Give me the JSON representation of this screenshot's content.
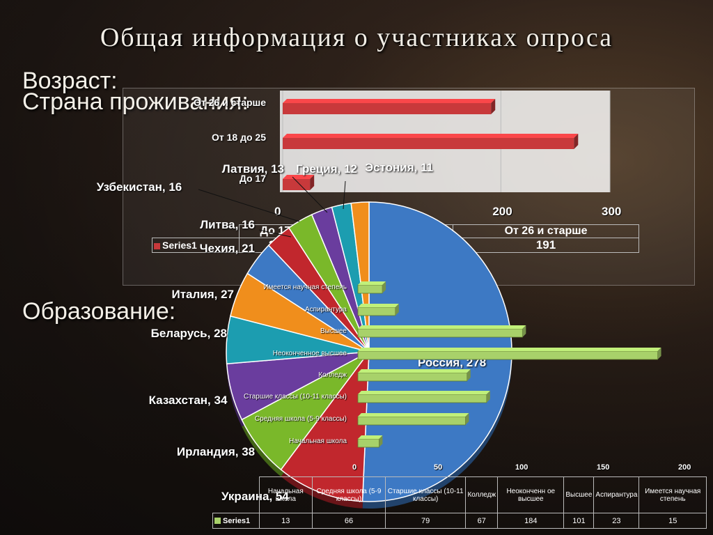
{
  "title": "Общая информация о участниках опроса",
  "sections": {
    "age": "Возраст:",
    "country": "Страна проживания:",
    "education": "Образование:"
  },
  "chart_data": [
    {
      "id": "age",
      "type": "bar",
      "orientation": "horizontal",
      "categories": [
        "До 17",
        "От 18 до 25",
        "От 26 и старше"
      ],
      "series": [
        {
          "name": "Series1",
          "values": [
            25,
            267,
            191
          ]
        }
      ],
      "xlim": [
        0,
        300
      ],
      "x_ticks": [
        0,
        200,
        300
      ],
      "table_headers": [
        "До 17",
        "От 18 до 25",
        "От 26 и старше"
      ],
      "table_values": [
        "25",
        "267",
        "191"
      ],
      "legend": "Series1",
      "color": "#c8393b"
    },
    {
      "id": "country",
      "type": "pie",
      "slices": [
        {
          "label": "Россия, 278",
          "value": 278,
          "color": "#3d79c4"
        },
        {
          "label": "Украина, 54",
          "value": 54,
          "color": "#c1272d"
        },
        {
          "label": "Ирландия, 38",
          "value": 38,
          "color": "#7ab82a"
        },
        {
          "label": "Казахстан, 34",
          "value": 34,
          "color": "#6a3d9e"
        },
        {
          "label": "Беларусь, 28",
          "value": 28,
          "color": "#1c9db0"
        },
        {
          "label": "Италия, 27",
          "value": 27,
          "color": "#f08e1c"
        },
        {
          "label": "Чехия, 21",
          "value": 21,
          "color": "#3d79c4"
        },
        {
          "label": "Литва, 16",
          "value": 16,
          "color": "#c1272d"
        },
        {
          "label": "Узбекистан, 16",
          "value": 16,
          "color": "#7ab82a"
        },
        {
          "label": "Латвия, 13",
          "value": 13,
          "color": "#6a3d9e"
        },
        {
          "label": "Греция, 12",
          "value": 12,
          "color": "#1c9db0"
        },
        {
          "label": "Эстония, 11",
          "value": 11,
          "color": "#f08e1c"
        }
      ]
    },
    {
      "id": "education",
      "type": "bar",
      "orientation": "horizontal",
      "categories": [
        "Начальная школа",
        "Средняя школа (5-9 классы)",
        "Старшие классы (10-11 классы)",
        "Колледж",
        "Неоконченное высшее",
        "Высшее",
        "Аспирантура",
        "Имеется научная степень"
      ],
      "series": [
        {
          "name": "Series1",
          "values": [
            13,
            66,
            79,
            67,
            184,
            101,
            23,
            15
          ]
        }
      ],
      "xlim": [
        0,
        200
      ],
      "x_ticks": [
        0,
        50,
        100,
        150,
        200
      ],
      "table_headers": [
        "Начальная школа",
        "Средняя школа (5-9 классы)",
        "Старшие классы (10-11 классы)",
        "Колледж",
        "Неоконченн ое высшее",
        "Высшее",
        "Аспирантура",
        "Имеется научная степень"
      ],
      "table_values": [
        "13",
        "66",
        "79",
        "67",
        "184",
        "101",
        "23",
        "15"
      ],
      "legend": "Series1",
      "color": "#a8d16a"
    }
  ]
}
